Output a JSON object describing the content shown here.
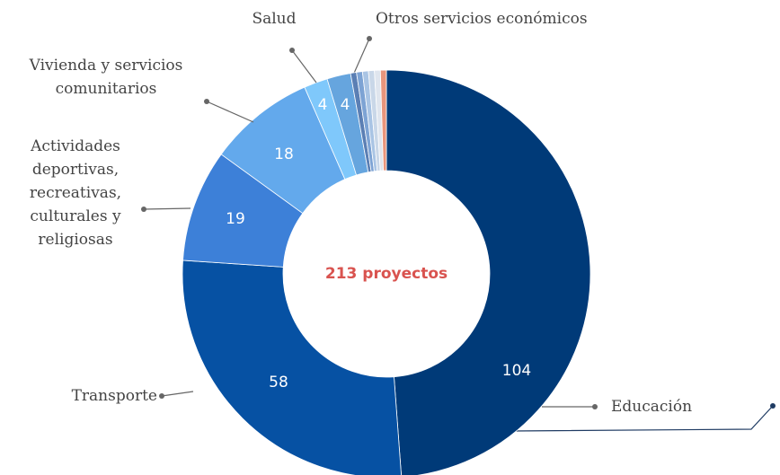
{
  "chart_data": {
    "type": "donut",
    "center_label": "213 proyectos",
    "categories": [
      "Educación",
      "Transporte",
      "Actividades deportivas, recreativas, culturales y religiosas",
      "Vivienda y servicios comunitarios",
      "Salud",
      "Otros servicios económicos",
      null,
      null,
      null,
      null,
      null,
      null
    ],
    "values": [
      104,
      58,
      19,
      18,
      4,
      4,
      1,
      1,
      1,
      1,
      1,
      1
    ],
    "colors": [
      "#003a78",
      "#0651a3",
      "#3d80d8",
      "#63a9ec",
      "#7fc8fb",
      "#66a5de",
      "#5b7fb4",
      "#7da3d4",
      "#a9c4e4",
      "#c9d7e8",
      "#dfe5ee",
      "#e8957c"
    ]
  }
}
